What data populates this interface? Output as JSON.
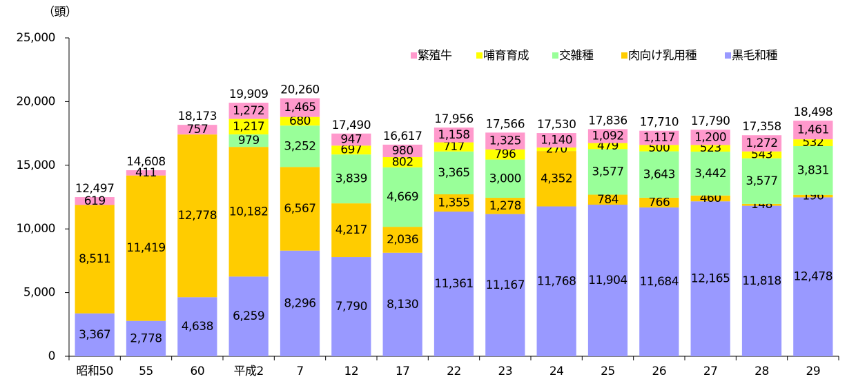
{
  "chart_data": {
    "type": "stacked_bar",
    "y_unit": "（頭）",
    "categories": [
      "昭和50",
      "55",
      "60",
      "平成2",
      "7",
      "12",
      "17",
      "22",
      "23",
      "24",
      "25",
      "26",
      "27",
      "28",
      "29"
    ],
    "series": [
      {
        "name": "黒毛和種",
        "color": "#9999ff",
        "values": [
          3367,
          2778,
          4638,
          6259,
          8296,
          7790,
          8130,
          11361,
          11167,
          11768,
          11904,
          11684,
          12165,
          11818,
          12478
        ],
        "value_labels": [
          "3,367",
          "2,778",
          "4,638",
          "6,259",
          "8,296",
          "7,790",
          "8,130",
          "11,361",
          "11,167",
          "11,768",
          "11,904",
          "11,684",
          "12,165",
          "11,818",
          "12,478"
        ]
      },
      {
        "name": "肉向け乳用種",
        "color": "#ffcc00",
        "values": [
          8511,
          11419,
          12778,
          10182,
          6567,
          4217,
          2036,
          1355,
          1278,
          4352,
          784,
          766,
          460,
          148,
          196
        ],
        "value_labels": [
          "8,511",
          "11,419",
          "12,778",
          "10,182",
          "6,567",
          "4,217",
          "2,036",
          "1,355",
          "1,278",
          "4,352",
          "784",
          "766",
          "460",
          "148",
          "196"
        ]
      },
      {
        "name": "交雑種",
        "color": "#99ff99",
        "values": [
          null,
          null,
          null,
          979,
          3252,
          3839,
          4669,
          3365,
          3000,
          null,
          3577,
          3643,
          3442,
          3577,
          3831
        ],
        "value_labels": [
          null,
          null,
          null,
          "979",
          "3,252",
          "3,839",
          "4,669",
          "3,365",
          "3,000",
          null,
          "3,577",
          "3,643",
          "3,442",
          "3,577",
          "3,831"
        ]
      },
      {
        "name": "哺育育成",
        "color": "#ffff00",
        "values": [
          null,
          null,
          null,
          1217,
          680,
          697,
          802,
          717,
          796,
          270,
          479,
          500,
          523,
          543,
          532
        ],
        "value_labels": [
          null,
          null,
          null,
          "1,217",
          "680",
          "697",
          "802",
          "717",
          "796",
          "270",
          "479",
          "500",
          "523",
          "543",
          "532"
        ]
      },
      {
        "name": "繁殖牛",
        "color": "#ff99cc",
        "values": [
          619,
          411,
          757,
          1272,
          1465,
          947,
          980,
          1158,
          1325,
          1140,
          1092,
          1117,
          1200,
          1272,
          1461
        ],
        "value_labels": [
          "619",
          "411",
          "757",
          "1,272",
          "1,465",
          "947",
          "980",
          "1,158",
          "1,325",
          "1,140",
          "1,092",
          "1,117",
          "1,200",
          "1,272",
          "1,461"
        ]
      }
    ],
    "totals": [
      12497,
      14608,
      18173,
      19909,
      20260,
      17490,
      16617,
      17956,
      17566,
      17530,
      17836,
      17710,
      17790,
      17358,
      18498
    ],
    "total_labels": [
      "12,497",
      "14,608",
      "18,173",
      "19,909",
      "20,260",
      "17,490",
      "16,617",
      "17,956",
      "17,566",
      "17,530",
      "17,836",
      "17,710",
      "17,790",
      "17,358",
      "18,498"
    ],
    "ylim": [
      0,
      25000
    ],
    "yticks": [
      0,
      {
        "value": 5000,
        "label": "5,000"
      },
      {
        "value": 10000,
        "label": "10,000"
      },
      {
        "value": 15000,
        "label": "15,000"
      },
      {
        "value": 20000,
        "label": "20,000"
      },
      {
        "value": 25000,
        "label": "25,000"
      }
    ],
    "legend": "top-right",
    "grid": false
  }
}
